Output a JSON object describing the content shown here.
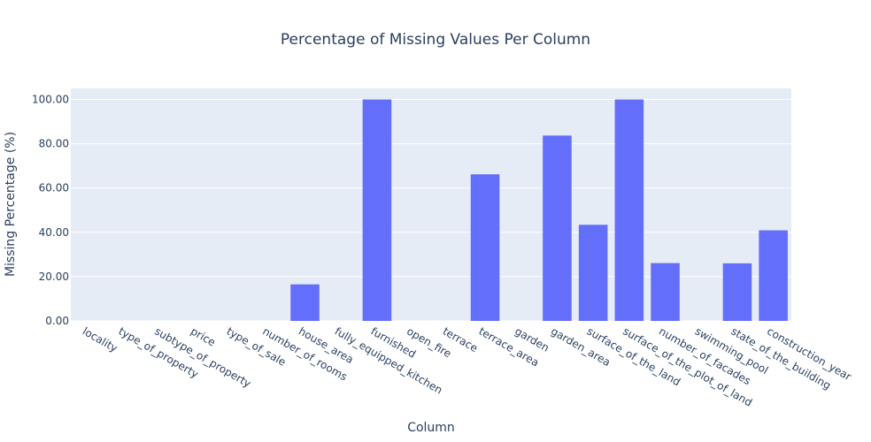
{
  "chart_data": {
    "type": "bar",
    "title": "Percentage of Missing Values Per Column",
    "xlabel": "Column",
    "ylabel": "Missing Percentage (%)",
    "categories": [
      "locality",
      "type_of_property",
      "subtype_of_property",
      "price",
      "type_of_sale",
      "number_of_rooms",
      "house_area",
      "fully_equipped_kitchen",
      "furnished",
      "open_fire",
      "terrace",
      "terrace_area",
      "garden",
      "garden_area",
      "surface_of_the_land",
      "surface_of_the_plot_of_land",
      "number_of_facades",
      "swimming_pool",
      "state_of_the_building",
      "construction_year"
    ],
    "values": [
      0,
      0,
      0,
      0,
      0,
      0,
      16.5,
      0,
      100,
      0,
      0,
      66.2,
      0,
      83.7,
      43.4,
      100,
      26.1,
      0,
      26.0,
      40.9
    ],
    "ylim": [
      0,
      105
    ],
    "yticks": [
      "0.00",
      "20.00",
      "40.00",
      "60.00",
      "80.00",
      "100.00"
    ],
    "ytick_values": [
      0,
      20,
      40,
      60,
      80,
      100
    ],
    "grid": true,
    "colors": {
      "bar": "#636efa",
      "plot_bg": "#e5ecf6",
      "grid": "#ffffff",
      "text": "#2a3f5f"
    }
  }
}
